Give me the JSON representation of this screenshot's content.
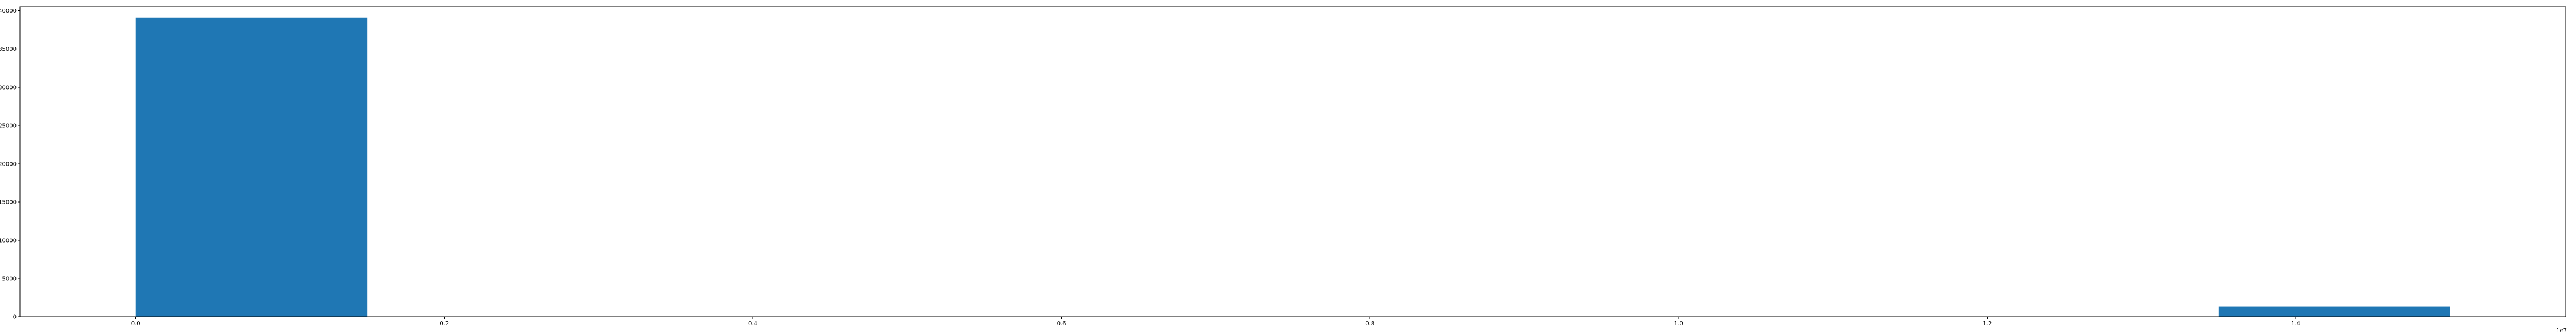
{
  "chart_data": {
    "type": "bar",
    "title": "",
    "xlabel": "",
    "ylabel": "",
    "x_offset_text": "1e7",
    "xlim": [
      -0.075,
      1.575
    ],
    "ylim": [
      0,
      40500
    ],
    "x_ticks": [
      0.0,
      0.2,
      0.4,
      0.6,
      0.8,
      1.0,
      1.2,
      1.4
    ],
    "x_tick_labels": [
      "0.0",
      "0.2",
      "0.4",
      "0.6",
      "0.8",
      "1.0",
      "1.2",
      "1.4"
    ],
    "y_ticks": [
      0,
      5000,
      10000,
      15000,
      20000,
      25000,
      30000,
      35000,
      40000
    ],
    "y_tick_labels": [
      "0",
      "5000",
      "10000",
      "15000",
      "20000",
      "25000",
      "30000",
      "35000",
      "40000"
    ],
    "bars": [
      {
        "x_start": 0.0,
        "x_end": 0.15,
        "value": 39100
      },
      {
        "x_start": 1.35,
        "x_end": 1.5,
        "value": 1300
      }
    ],
    "grid": false,
    "colors": {
      "bar": "#1f77b4",
      "axis": "#000000"
    }
  }
}
